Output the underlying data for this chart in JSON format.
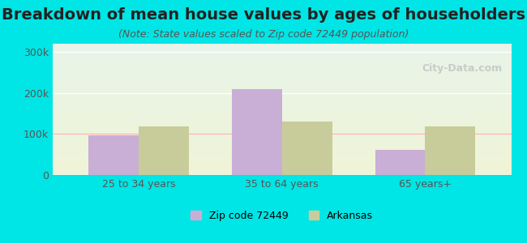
{
  "title": "Breakdown of mean house values by ages of householders",
  "subtitle": "(Note: State values scaled to Zip code 72449 population)",
  "categories": [
    "25 to 34 years",
    "35 to 64 years",
    "65 years+"
  ],
  "zip_values": [
    97000,
    210000,
    62000
  ],
  "state_values": [
    118000,
    130000,
    118000
  ],
  "zip_color": "#c9aed6",
  "state_color": "#c8cc9a",
  "background_outer": "#00e5e5",
  "background_inner_top": "#e8f5e9",
  "background_inner_bottom": "#f5f5e0",
  "ylim": [
    0,
    320000
  ],
  "yticks": [
    0,
    100000,
    200000,
    300000
  ],
  "ytick_labels": [
    "0",
    "100k",
    "200k",
    "300k"
  ],
  "legend_labels": [
    "Zip code 72449",
    "Arkansas"
  ],
  "bar_width": 0.35,
  "title_fontsize": 14,
  "subtitle_fontsize": 9,
  "tick_fontsize": 9,
  "legend_fontsize": 9,
  "watermark_text": "City-Data.com"
}
